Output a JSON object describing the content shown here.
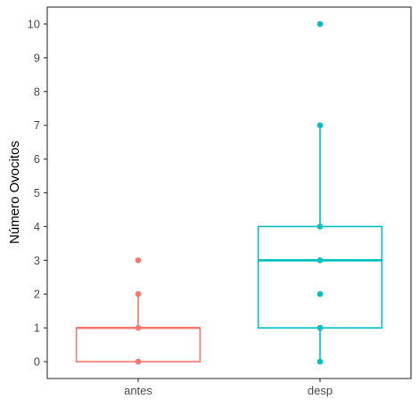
{
  "chart_data": {
    "type": "boxplot",
    "ylabel": "Número Ovocitos",
    "xlabel": "",
    "categories": [
      "antes",
      "desp"
    ],
    "ylim": [
      -0.5,
      10.5
    ],
    "yticks": [
      0,
      1,
      2,
      3,
      4,
      5,
      6,
      7,
      8,
      9,
      10
    ],
    "grid": false,
    "legend": "none",
    "series": [
      {
        "category": "antes",
        "color": "#F8766D",
        "box": {
          "q1": 0,
          "median": 1,
          "q3": 1,
          "whisker_low": 0,
          "whisker_high": 2
        },
        "points": [
          0,
          1,
          2,
          3
        ]
      },
      {
        "category": "desp",
        "color": "#00BFC4",
        "box": {
          "q1": 1,
          "median": 3,
          "q3": 4,
          "whisker_low": 0,
          "whisker_high": 7
        },
        "points": [
          0,
          1,
          2,
          3,
          4,
          7,
          10
        ]
      }
    ]
  }
}
